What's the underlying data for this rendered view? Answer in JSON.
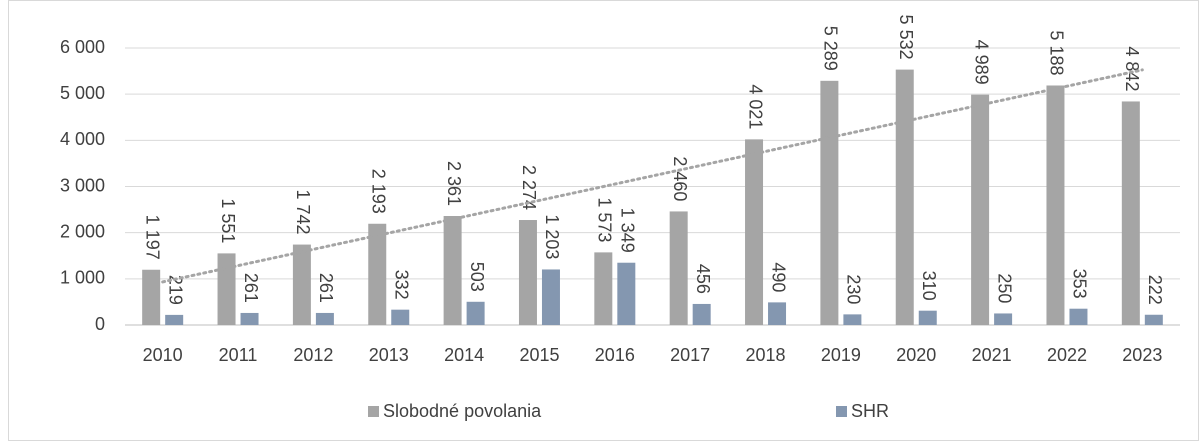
{
  "chart_data": {
    "type": "bar",
    "categories": [
      "2010",
      "2011",
      "2012",
      "2013",
      "2014",
      "2015",
      "2016",
      "2017",
      "2018",
      "2019",
      "2020",
      "2021",
      "2022",
      "2023"
    ],
    "series": [
      {
        "name": "Slobodné povolania",
        "color": "#a5a5a5",
        "values": [
          1197,
          1551,
          1742,
          2193,
          2361,
          2274,
          1573,
          2460,
          4021,
          5289,
          5532,
          4989,
          5188,
          4842
        ],
        "value_labels": [
          "1 197",
          "1 551",
          "1 742",
          "2 193",
          "2 361",
          "2 274",
          "1 573",
          "2 460",
          "4 021",
          "5 289",
          "5 532",
          "4 989",
          "5 188",
          "4 842"
        ],
        "trendline": "linear",
        "trendline_color": "#a5a5a5"
      },
      {
        "name": "SHR",
        "color": "#8497b0",
        "values": [
          219,
          261,
          261,
          332,
          503,
          1203,
          1349,
          456,
          490,
          230,
          310,
          250,
          353,
          222
        ],
        "value_labels": [
          "219",
          "261",
          "261",
          "332",
          "503",
          "1 203",
          "1 349",
          "456",
          "490",
          "230",
          "310",
          "250",
          "353",
          "222"
        ]
      }
    ],
    "ylim": [
      0,
      6000
    ],
    "yticks": [
      0,
      {
        "value": 1000,
        "label": "1 000"
      },
      {
        "value": 2000,
        "label": "2 000"
      },
      {
        "value": 3000,
        "label": "3 000"
      },
      {
        "value": 4000,
        "label": "4 000"
      },
      {
        "value": 5000,
        "label": "5 000"
      },
      {
        "value": 6000,
        "label": "6 000"
      }
    ],
    "grid": true,
    "legend": "bottom"
  }
}
